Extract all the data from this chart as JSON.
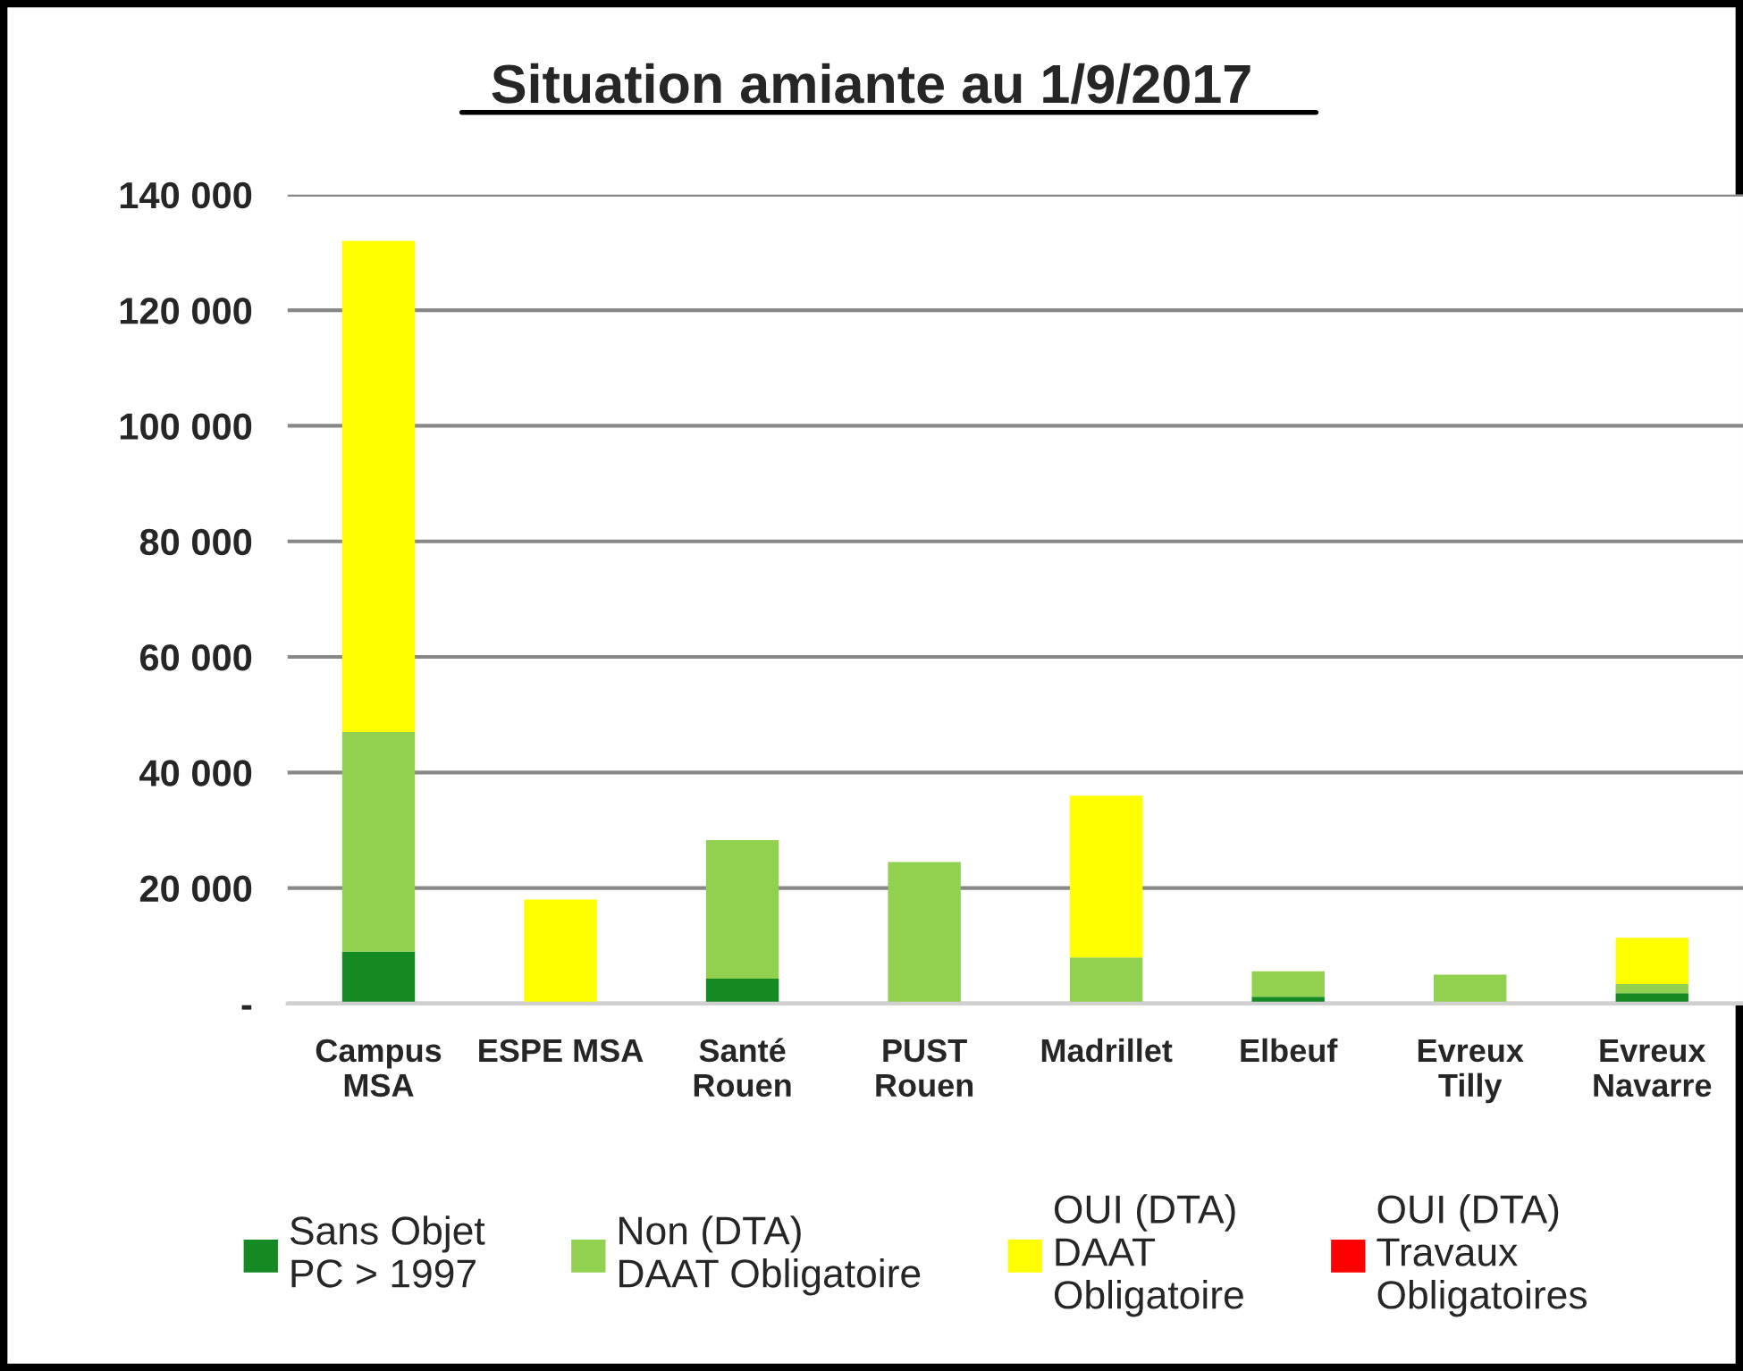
{
  "chart_data": {
    "type": "bar",
    "title": "Situation amiante au 1/9/2017",
    "stacked": true,
    "categories": [
      "Campus\nMSA",
      "ESPE MSA",
      "Santé\nRouen",
      "PUST\nRouen",
      "Madrillet",
      "Elbeuf",
      "Evreux\nTilly",
      "Evreux\nNavarre"
    ],
    "series": [
      {
        "name": "Sans Objet\nPC > 1997",
        "color": "#158a24",
        "values": [
          9000,
          0,
          4300,
          0,
          0,
          1200,
          0,
          1800
        ]
      },
      {
        "name": "Non (DTA)\nDAAT Obligatoire",
        "color": "#92d050",
        "values": [
          38000,
          0,
          24000,
          24500,
          8000,
          4400,
          5000,
          1600
        ]
      },
      {
        "name": "OUI (DTA)\nDAAT\nObligatoire",
        "color": "#ffff00",
        "values": [
          85000,
          18000,
          0,
          0,
          28000,
          0,
          0,
          8000
        ]
      },
      {
        "name": "OUI (DTA)\nTravaux\nObligatoires",
        "color": "#ff0000",
        "values": [
          0,
          0,
          0,
          0,
          0,
          0,
          0,
          0
        ]
      }
    ],
    "ylim": [
      0,
      140000
    ],
    "yticks": [
      {
        "value": 0,
        "label": "-"
      },
      {
        "value": 20000,
        "label": "20 000"
      },
      {
        "value": 40000,
        "label": "40 000"
      },
      {
        "value": 60000,
        "label": "60 000"
      },
      {
        "value": 80000,
        "label": "80 000"
      },
      {
        "value": 100000,
        "label": "100 000"
      },
      {
        "value": 120000,
        "label": "120 000"
      },
      {
        "value": 140000,
        "label": "140 000"
      }
    ],
    "grid": "y",
    "legend": "bottom"
  }
}
